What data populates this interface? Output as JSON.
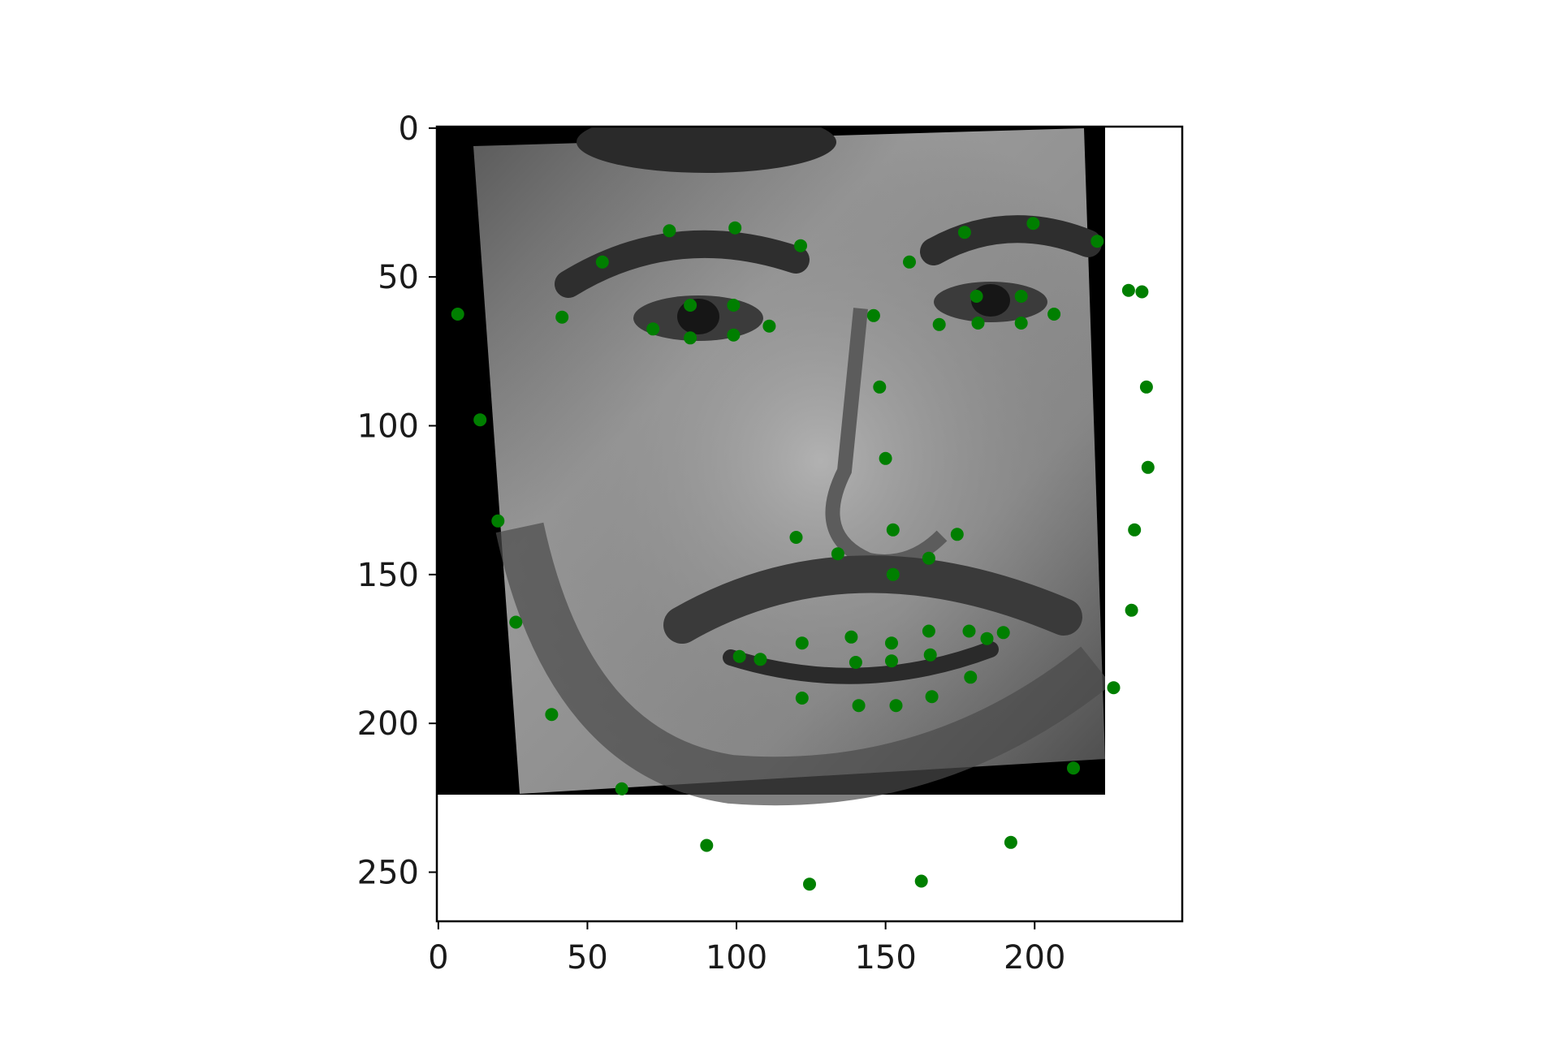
{
  "chart_data": {
    "type": "scatter",
    "title": "",
    "xlabel": "",
    "ylabel": "",
    "xlim": [
      0,
      250
    ],
    "ylim": [
      267,
      0
    ],
    "y_inverted": true,
    "grid": false,
    "legend": "none",
    "marker_color": "#007f00",
    "background_image": {
      "description_icon": "face-image-icon",
      "data_extent": {
        "x": [
          0,
          224
        ],
        "y": [
          0,
          224
        ]
      }
    },
    "xticks": [
      0,
      50,
      100,
      150,
      200
    ],
    "yticks": [
      0,
      50,
      100,
      150,
      200,
      250
    ],
    "xtick_labels": [
      "0",
      "50",
      "100",
      "150",
      "200"
    ],
    "ytick_labels": [
      "0",
      "50",
      "100",
      "150",
      "200",
      "250"
    ],
    "series": [
      {
        "points": [
          [
            6.5,
            62.5
          ],
          [
            14,
            98
          ],
          [
            20,
            132
          ],
          [
            26,
            166
          ],
          [
            38,
            197
          ],
          [
            61.5,
            222
          ],
          [
            90,
            241
          ],
          [
            124.5,
            254
          ],
          [
            162,
            253
          ],
          [
            192,
            240
          ],
          [
            213,
            215
          ],
          [
            226.5,
            188
          ],
          [
            232.5,
            162
          ],
          [
            233.5,
            135
          ],
          [
            238,
            114
          ],
          [
            237.5,
            87
          ],
          [
            236,
            55
          ],
          [
            231.5,
            54.5
          ],
          [
            41.5,
            63.5
          ],
          [
            55,
            45
          ],
          [
            77.5,
            34.5
          ],
          [
            99.5,
            33.5
          ],
          [
            121.5,
            39.5
          ],
          [
            158,
            45
          ],
          [
            176.5,
            35
          ],
          [
            199.5,
            32
          ],
          [
            221,
            38
          ],
          [
            146,
            63
          ],
          [
            148,
            87
          ],
          [
            150,
            111
          ],
          [
            120,
            137.5
          ],
          [
            134,
            143
          ],
          [
            152.5,
            135
          ],
          [
            164.5,
            144.5
          ],
          [
            174,
            136.5
          ],
          [
            72,
            67.5
          ],
          [
            84.5,
            59.5
          ],
          [
            84.5,
            70.5
          ],
          [
            99,
            59.5
          ],
          [
            99,
            69.5
          ],
          [
            111,
            66.5
          ],
          [
            168,
            66
          ],
          [
            180.5,
            56.5
          ],
          [
            181,
            65.5
          ],
          [
            195.5,
            56.5
          ],
          [
            195.5,
            65.5
          ],
          [
            206.5,
            62.5
          ],
          [
            101,
            177.5
          ],
          [
            108,
            178.5
          ],
          [
            122,
            173
          ],
          [
            138.5,
            171
          ],
          [
            152,
            173
          ],
          [
            164.5,
            169
          ],
          [
            178,
            169
          ],
          [
            184,
            171.5
          ],
          [
            189.5,
            169.5
          ],
          [
            178.5,
            184.5
          ],
          [
            165.5,
            191
          ],
          [
            153.5,
            194
          ],
          [
            141,
            194
          ],
          [
            122,
            191.5
          ],
          [
            140,
            179.5
          ],
          [
            152,
            179
          ],
          [
            165,
            177
          ],
          [
            152.5,
            150
          ]
        ]
      }
    ]
  }
}
